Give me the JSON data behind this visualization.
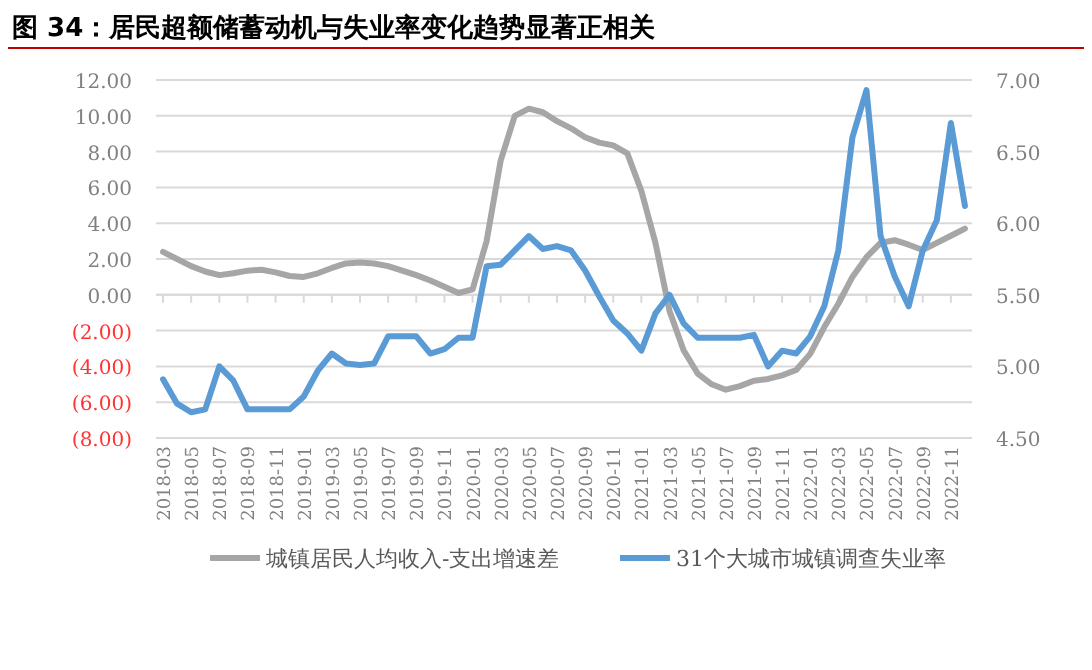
{
  "chart_data": {
    "type": "line",
    "title": "图 34：居民超额储蓄动机与失业率变化趋势显著正相关",
    "categories": [
      "2018-03",
      null,
      "2018-05",
      null,
      "2018-07",
      null,
      "2018-09",
      null,
      "2018-11",
      null,
      "2019-01",
      null,
      "2019-03",
      null,
      "2019-05",
      null,
      "2019-07",
      null,
      "2019-09",
      null,
      "2019-11",
      null,
      "2020-01",
      null,
      "2020-03",
      null,
      "2020-05",
      null,
      "2020-07",
      null,
      "2020-09",
      null,
      "2020-11",
      null,
      "2021-01",
      null,
      "2021-03",
      null,
      "2021-05",
      null,
      "2021-07",
      null,
      "2021-09",
      null,
      "2021-11",
      null,
      "2022-01",
      null,
      "2022-03",
      null,
      "2022-05",
      null,
      "2022-07",
      null,
      "2022-09",
      null,
      "2022-11",
      null
    ],
    "series": [
      {
        "name": "城镇居民人均收入-支出增速差",
        "color": "#a6a6a6",
        "values": [
          2.4,
          2.0,
          1.6,
          1.3,
          1.1,
          1.2,
          1.35,
          1.4,
          1.25,
          1.05,
          1.0,
          1.2,
          1.5,
          1.75,
          1.8,
          1.75,
          1.6,
          1.35,
          1.1,
          0.8,
          0.45,
          0.1,
          0.3,
          3.0,
          7.5,
          10.0,
          10.4,
          10.2,
          9.7,
          9.3,
          8.8,
          8.5,
          8.35,
          7.9,
          5.8,
          2.9,
          -0.9,
          -3.1,
          -4.4,
          -5.0,
          -5.3,
          -5.1,
          -4.8,
          -4.7,
          -4.5,
          -4.2,
          -3.3,
          -1.8,
          -0.5,
          1.0,
          2.1,
          2.9,
          3.05,
          2.8,
          2.5,
          2.9,
          3.3,
          3.7
        ]
      },
      {
        "name": "31个大城市城镇调查失业率",
        "color": "#5b9bd5",
        "axis": "y2",
        "values": [
          4.91,
          4.74,
          4.68,
          4.7,
          5.0,
          4.9,
          4.7,
          4.7,
          4.7,
          4.7,
          4.79,
          4.97,
          5.09,
          5.02,
          5.01,
          5.02,
          5.21,
          5.21,
          5.21,
          5.09,
          5.12,
          5.2,
          5.2,
          5.7,
          5.71,
          5.81,
          5.91,
          5.82,
          5.84,
          5.81,
          5.67,
          5.49,
          5.32,
          5.23,
          5.11,
          5.37,
          5.5,
          5.3,
          5.2,
          5.2,
          5.2,
          5.2,
          5.22,
          5.0,
          5.11,
          5.09,
          5.21,
          5.42,
          5.81,
          6.6,
          6.93,
          5.91,
          5.63,
          5.42,
          5.81,
          6.02,
          6.7,
          6.12
        ]
      }
    ],
    "ylim": [
      -8,
      12
    ],
    "yticks": [
      {
        "value": -8,
        "label": "(8.00)"
      },
      {
        "value": -6,
        "label": "(6.00)"
      },
      {
        "value": -4,
        "label": "(4.00)"
      },
      {
        "value": -2,
        "label": "(2.00)"
      },
      {
        "value": 0,
        "label": "0.00"
      },
      {
        "value": 2,
        "label": "2.00"
      },
      {
        "value": 4,
        "label": "4.00"
      },
      {
        "value": 6,
        "label": "6.00"
      },
      {
        "value": 8,
        "label": "8.00"
      },
      {
        "value": 10,
        "label": "10.00"
      },
      {
        "value": 12,
        "label": "12.00"
      }
    ],
    "y2lim": [
      4.5,
      7
    ],
    "y2ticks": [
      {
        "value": 4.5,
        "label": "4.50"
      },
      {
        "value": 5,
        "label": "5.00"
      },
      {
        "value": 5.5,
        "label": "5.50"
      },
      {
        "value": 6,
        "label": "6.00"
      },
      {
        "value": 6.5,
        "label": "6.50"
      },
      {
        "value": 7,
        "label": "7.00"
      }
    ],
    "grid": "y",
    "legend": "bottom",
    "marker": "none",
    "line_style": "solid"
  }
}
